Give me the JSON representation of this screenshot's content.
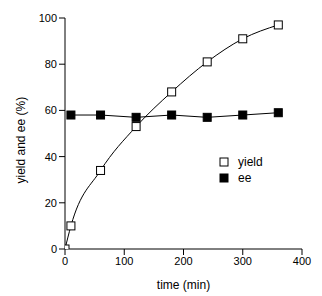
{
  "chart_data": {
    "type": "line",
    "x_label": "time (min)",
    "y_label": "yield and ee (%)",
    "x": [
      0,
      10,
      60,
      120,
      180,
      240,
      300,
      360
    ],
    "series": [
      {
        "name": "yield",
        "color": "#000000",
        "marker": "open_square",
        "line_style": "smooth",
        "values": [
          0,
          10,
          34,
          53,
          68,
          81,
          91,
          97
        ]
      },
      {
        "name": "ee",
        "color": "#000000",
        "marker": "square",
        "line_style": "solid",
        "values": [
          null,
          58,
          58,
          57,
          58,
          57,
          58,
          59
        ]
      }
    ],
    "xlim": [
      0,
      400
    ],
    "xticks": [
      0,
      100,
      200,
      300,
      400
    ],
    "ylim": [
      0,
      100
    ],
    "yticks": [
      0,
      20,
      40,
      60,
      80,
      100
    ],
    "legend": "right",
    "grid": false
  }
}
